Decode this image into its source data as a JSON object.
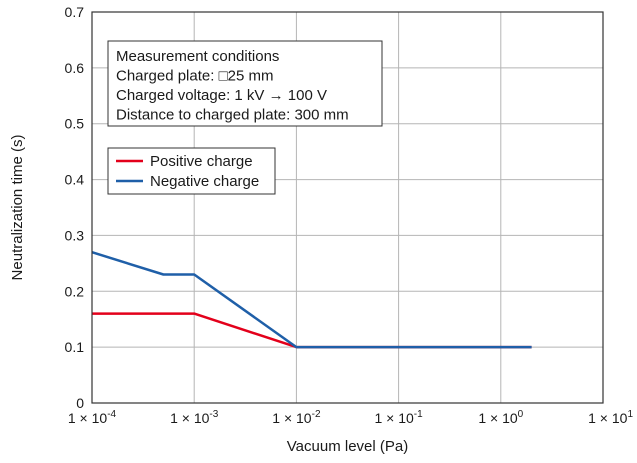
{
  "chart_data": {
    "type": "line",
    "xscale": "log",
    "xlim": [
      0.0001,
      10
    ],
    "ylim": [
      0,
      0.7
    ],
    "grid": true,
    "xlabel": "Vacuum level (Pa)",
    "ylabel": "Neutralization time (s)",
    "xticks": [
      {
        "value": 0.0001,
        "base": "1 × 10",
        "exp": "-4"
      },
      {
        "value": 0.001,
        "base": "1 × 10",
        "exp": "-3"
      },
      {
        "value": 0.01,
        "base": "1 × 10",
        "exp": "-2"
      },
      {
        "value": 0.1,
        "base": "1 × 10",
        "exp": "-1"
      },
      {
        "value": 1,
        "base": "1 × 10",
        "exp": "0"
      },
      {
        "value": 10,
        "base": "1 × 10",
        "exp": "1"
      }
    ],
    "yticks": [
      {
        "value": 0,
        "label": "0"
      },
      {
        "value": 0.1,
        "label": "0.1"
      },
      {
        "value": 0.2,
        "label": "0.2"
      },
      {
        "value": 0.3,
        "label": "0.3"
      },
      {
        "value": 0.4,
        "label": "0.4"
      },
      {
        "value": 0.5,
        "label": "0.5"
      },
      {
        "value": 0.6,
        "label": "0.6"
      },
      {
        "value": 0.7,
        "label": "0.7"
      }
    ],
    "series": [
      {
        "name": "Positive charge",
        "color": "#e3001b",
        "x": [
          0.0001,
          0.001,
          0.01,
          2
        ],
        "y": [
          0.16,
          0.16,
          0.1,
          0.1
        ]
      },
      {
        "name": "Negative charge",
        "color": "#1f5fa8",
        "x": [
          0.0001,
          0.0005,
          0.001,
          0.01,
          2
        ],
        "y": [
          0.27,
          0.23,
          0.23,
          0.1,
          0.1
        ]
      }
    ],
    "legend_position": "top-left",
    "annotation": [
      "Measurement conditions",
      "Charged plate: □25 mm",
      "Charged voltage: 1 kV → 100 V",
      "Distance to charged plate: 300 mm"
    ]
  }
}
